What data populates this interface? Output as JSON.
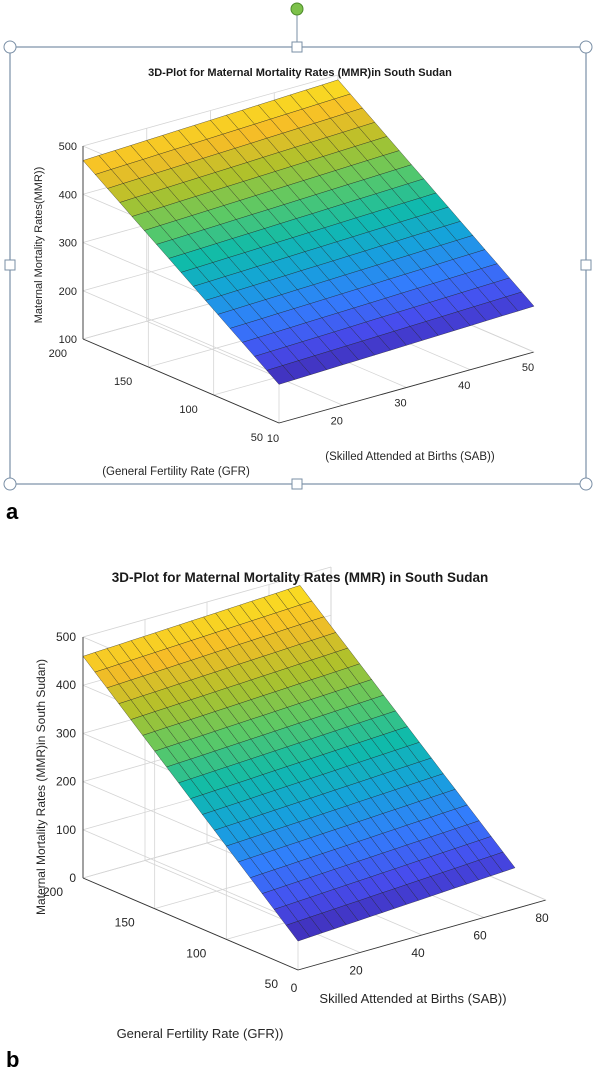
{
  "chart_data": [
    {
      "type": "surface",
      "panel_label": "a",
      "title": "3D-Plot for Maternal Mortality Rates (MMR)in South Sudan",
      "xlabel": "(Skilled Attended at Births (SAB))",
      "ylabel": "(General Fertility Rate (GFR)",
      "zlabel": "Maternal Mortality Rates(MMR))",
      "x_ticks": [
        "10",
        "20",
        "30",
        "40",
        "50"
      ],
      "y_ticks": [
        "50",
        "100",
        "150",
        "200"
      ],
      "z_ticks": [
        "100",
        "200",
        "300",
        "400",
        "500"
      ],
      "xlim": [
        10,
        50
      ],
      "ylim": [
        50,
        200
      ],
      "zlim": [
        100,
        500
      ],
      "grid": true,
      "colormap": "parula",
      "surface_corners": [
        {
          "x": 10,
          "y": 200,
          "z": 470
        },
        {
          "x": 50,
          "y": 200,
          "z": 490
        },
        {
          "x": 50,
          "y": 50,
          "z": 195
        },
        {
          "x": 10,
          "y": 50,
          "z": 180
        }
      ],
      "mesh": [
        16,
        16
      ]
    },
    {
      "type": "surface",
      "panel_label": "b",
      "title": "3D-Plot for Maternal Mortality Rates (MMR) in South Sudan",
      "xlabel": "Skilled Attended at Births (SAB))",
      "ylabel": "General Fertility Rate (GFR))",
      "zlabel": "Maternal Mortality Rates (MMR)in South Sudan)",
      "x_ticks": [
        "0",
        "20",
        "40",
        "60",
        "80"
      ],
      "y_ticks": [
        "50",
        "100",
        "150",
        "200"
      ],
      "z_ticks": [
        "0",
        "100",
        "200",
        "300",
        "400",
        "500"
      ],
      "xlim": [
        0,
        80
      ],
      "ylim": [
        50,
        200
      ],
      "zlim": [
        0,
        500
      ],
      "grid": true,
      "colormap": "parula",
      "surface_corners": [
        {
          "x": 0,
          "y": 200,
          "z": 460
        },
        {
          "x": 70,
          "y": 200,
          "z": 480
        },
        {
          "x": 70,
          "y": 50,
          "z": 85
        },
        {
          "x": 0,
          "y": 50,
          "z": 60
        }
      ],
      "mesh": [
        18,
        18
      ]
    }
  ]
}
